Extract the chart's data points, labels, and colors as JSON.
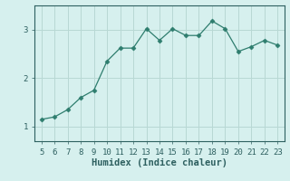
{
  "x": [
    5,
    6,
    7,
    8,
    9,
    10,
    11,
    12,
    13,
    14,
    15,
    16,
    17,
    18,
    19,
    20,
    21,
    22,
    23
  ],
  "y": [
    1.15,
    1.2,
    1.35,
    1.6,
    1.75,
    2.35,
    2.62,
    2.62,
    3.02,
    2.78,
    3.02,
    2.88,
    2.88,
    3.18,
    3.02,
    2.55,
    2.65,
    2.78,
    2.68
  ],
  "line_color": "#2e7d6e",
  "marker": "D",
  "marker_size": 2.5,
  "bg_color": "#d6f0ee",
  "grid_color": "#b8d8d4",
  "axis_color": "#2e6060",
  "xlabel": "Humidex (Indice chaleur)",
  "xlim": [
    4.5,
    23.5
  ],
  "ylim": [
    0.7,
    3.5
  ],
  "yticks": [
    1,
    2,
    3
  ],
  "xticks": [
    5,
    6,
    7,
    8,
    9,
    10,
    11,
    12,
    13,
    14,
    15,
    16,
    17,
    18,
    19,
    20,
    21,
    22,
    23
  ]
}
